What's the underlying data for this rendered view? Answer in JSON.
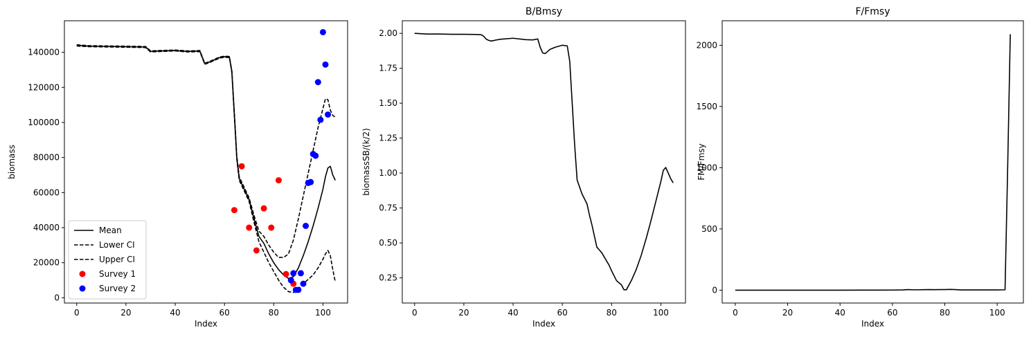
{
  "chart_data": [
    {
      "type": "line",
      "title": "",
      "xlabel": "Index",
      "ylabel": "biomass",
      "xlim": [
        -5,
        110
      ],
      "ylim": [
        -3000,
        158000
      ],
      "xticks": [
        0,
        20,
        40,
        60,
        80,
        100
      ],
      "yticks": [
        0,
        20000,
        40000,
        60000,
        80000,
        100000,
        120000,
        140000
      ],
      "legend_position": "lower-left",
      "series": [
        {
          "name": "Mean",
          "kind": "line",
          "style": "solid",
          "color": "#000000",
          "x": [
            0,
            5,
            10,
            15,
            20,
            25,
            28,
            30,
            33,
            40,
            45,
            50,
            52,
            54,
            58,
            60,
            62,
            63,
            64,
            65,
            66,
            67,
            68,
            70,
            72,
            74,
            76,
            78,
            80,
            82,
            84,
            86,
            88,
            90,
            92,
            94,
            96,
            98,
            100,
            101,
            102,
            103,
            104,
            105
          ],
          "y": [
            144000,
            143500,
            143400,
            143300,
            143200,
            143100,
            143000,
            140500,
            140700,
            141000,
            140500,
            140700,
            133500,
            134500,
            137000,
            137500,
            137300,
            129000,
            105000,
            80000,
            68000,
            65000,
            62000,
            56000,
            45000,
            35000,
            31000,
            25000,
            20000,
            16000,
            13000,
            11000,
            12000,
            17000,
            24000,
            32000,
            41000,
            51000,
            62000,
            69000,
            74000,
            75000,
            70000,
            67000
          ]
        },
        {
          "name": "Lower CI",
          "kind": "line",
          "style": "dashed",
          "color": "#000000",
          "x": [
            0,
            5,
            10,
            15,
            20,
            25,
            28,
            30,
            33,
            40,
            45,
            50,
            52,
            54,
            58,
            60,
            62,
            63,
            64,
            65,
            66,
            67,
            68,
            70,
            72,
            74,
            76,
            78,
            80,
            82,
            84,
            86,
            88,
            90,
            92,
            94,
            96,
            98,
            100,
            101,
            102,
            103,
            104,
            105
          ],
          "y": [
            143600,
            143200,
            143100,
            143000,
            142900,
            142800,
            142700,
            140200,
            140400,
            140800,
            140200,
            140400,
            133200,
            134200,
            136700,
            137200,
            137000,
            128500,
            104000,
            79000,
            67000,
            64000,
            61000,
            55000,
            43000,
            32000,
            26000,
            20000,
            15000,
            10000,
            6000,
            3500,
            3000,
            5000,
            8000,
            10500,
            13000,
            17000,
            22000,
            25000,
            27000,
            24000,
            16000,
            9000
          ]
        },
        {
          "name": "Upper CI",
          "kind": "line",
          "style": "dashed",
          "color": "#000000",
          "x": [
            0,
            5,
            10,
            15,
            20,
            25,
            28,
            30,
            33,
            40,
            45,
            50,
            52,
            54,
            58,
            60,
            62,
            63,
            64,
            65,
            66,
            67,
            68,
            70,
            72,
            74,
            76,
            78,
            80,
            82,
            84,
            86,
            88,
            90,
            92,
            94,
            96,
            98,
            100,
            101,
            102,
            103,
            104,
            105
          ],
          "y": [
            144300,
            143800,
            143700,
            143600,
            143500,
            143400,
            143300,
            140800,
            141000,
            141300,
            140800,
            141000,
            133800,
            134800,
            137300,
            137800,
            137600,
            129500,
            106000,
            81000,
            69000,
            66000,
            63000,
            57000,
            47000,
            38000,
            35000,
            30000,
            26000,
            23000,
            23000,
            25000,
            33000,
            45000,
            58000,
            71000,
            84000,
            97000,
            108000,
            113500,
            113000,
            107000,
            104000,
            103000
          ]
        },
        {
          "name": "Survey 1",
          "kind": "scatter",
          "color": "#ff0000",
          "x": [
            64,
            67,
            70,
            73,
            76,
            79,
            82,
            85,
            88
          ],
          "y": [
            50000,
            75000,
            40000,
            27000,
            51000,
            40000,
            67000,
            13500,
            8000
          ]
        },
        {
          "name": "Survey 2",
          "kind": "scatter",
          "color": "#0000ff",
          "x": [
            87,
            88,
            89,
            90,
            91,
            92,
            93,
            94,
            95,
            96,
            97,
            98,
            99,
            100,
            101,
            102
          ],
          "y": [
            10000,
            14000,
            4500,
            4500,
            14000,
            8000,
            41000,
            65500,
            66000,
            82000,
            81000,
            123000,
            101500,
            151500,
            133000,
            104500
          ]
        }
      ]
    },
    {
      "type": "line",
      "title": "B/Bmsy",
      "xlabel": "Index",
      "ylabel": "biomassSB/(k/2)",
      "xlim": [
        -5,
        110
      ],
      "ylim": [
        0.07,
        2.09
      ],
      "xticks": [
        0,
        20,
        40,
        60,
        80,
        100
      ],
      "yticks": [
        0.25,
        0.5,
        0.75,
        1.0,
        1.25,
        1.5,
        1.75,
        2.0
      ],
      "yticklabels": [
        "0.25",
        "0.50",
        "0.75",
        "1.00",
        "1.25",
        "1.50",
        "1.75",
        "2.00"
      ],
      "series": [
        {
          "name": "",
          "color": "#000000",
          "x": [
            0,
            5,
            10,
            15,
            20,
            25,
            27,
            28,
            29,
            30,
            31,
            32,
            33,
            35,
            40,
            45,
            48,
            50,
            51,
            52,
            53,
            54,
            55,
            57,
            60,
            62,
            63,
            64,
            65,
            66,
            67,
            68,
            70,
            71,
            72,
            73,
            74,
            75,
            76,
            78,
            79,
            80,
            82,
            84,
            85,
            86,
            88,
            90,
            92,
            94,
            96,
            98,
            100,
            101,
            102,
            103,
            104,
            105
          ],
          "y": [
            2.0,
            1.995,
            1.995,
            1.993,
            1.993,
            1.992,
            1.99,
            1.98,
            1.96,
            1.95,
            1.945,
            1.948,
            1.952,
            1.958,
            1.965,
            1.955,
            1.953,
            1.96,
            1.9,
            1.86,
            1.855,
            1.87,
            1.885,
            1.9,
            1.915,
            1.91,
            1.8,
            1.5,
            1.2,
            0.95,
            0.9,
            0.85,
            0.78,
            0.7,
            0.63,
            0.55,
            0.47,
            0.45,
            0.43,
            0.37,
            0.34,
            0.3,
            0.23,
            0.2,
            0.165,
            0.165,
            0.23,
            0.31,
            0.41,
            0.53,
            0.66,
            0.8,
            0.94,
            1.02,
            1.04,
            1.0,
            0.96,
            0.93
          ]
        }
      ]
    },
    {
      "type": "line",
      "title": "F/Fmsy",
      "xlabel": "Index",
      "ylabel": "FM/Fmsy",
      "xlim": [
        -5,
        110
      ],
      "ylim": [
        -105,
        2200
      ],
      "xticks": [
        0,
        20,
        40,
        60,
        80,
        100
      ],
      "yticks": [
        0,
        500,
        1000,
        1500,
        2000
      ],
      "series": [
        {
          "name": "",
          "color": "#000000",
          "x": [
            0,
            10,
            20,
            30,
            40,
            50,
            60,
            64,
            66,
            68,
            70,
            72,
            74,
            76,
            78,
            80,
            82,
            84,
            86,
            88,
            90,
            95,
            100,
            103,
            104,
            105
          ],
          "y": [
            0,
            0,
            0,
            0,
            0,
            0.5,
            1,
            2,
            5,
            3,
            3,
            4,
            5,
            4,
            5,
            5,
            6,
            5,
            2,
            2,
            2,
            2,
            2,
            3,
            1000,
            2090
          ]
        }
      ]
    }
  ]
}
